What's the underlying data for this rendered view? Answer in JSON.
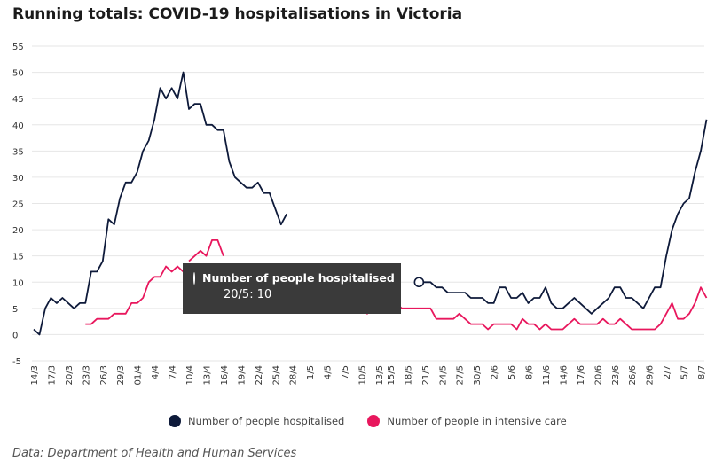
{
  "title": "Running totals: COVID-19 hospitalisations in Victoria",
  "source": "Data: Department of Health and Human Services",
  "colors": {
    "hospitalised": "#0e1a3a",
    "intensive_care": "#e8175d",
    "grid": "#e6e6e6",
    "tooltip_bg": "#3a3a3a"
  },
  "tooltip": {
    "series": "Number of people hospitalised",
    "value_text": "20/5: 10",
    "date": "20/5",
    "value": 10
  },
  "chart_data": {
    "type": "line",
    "title": "Running totals: COVID-19 hospitalisations in Victoria",
    "ylim": [
      -5,
      55
    ],
    "yticks": [
      -5,
      0,
      5,
      10,
      15,
      20,
      25,
      30,
      35,
      40,
      45,
      50,
      55
    ],
    "grid": "horizontal",
    "legend_position": "bottom",
    "x_start": "14/3",
    "x_end": "8/7",
    "xticks": [
      "14/3",
      "17/3",
      "20/3",
      "23/3",
      "26/3",
      "29/3",
      "01/4",
      "4/4",
      "7/4",
      "10/4",
      "13/4",
      "16/4",
      "19/4",
      "22/4",
      "25/4",
      "28/4",
      "1/5",
      "4/5",
      "7/5",
      "10/5",
      "13/5",
      "15/5",
      "18/5",
      "21/5",
      "24/5",
      "27/5",
      "30/5",
      "2/6",
      "5/6",
      "8/6",
      "11/6",
      "14/6",
      "17/6",
      "20/6",
      "23/6",
      "26/6",
      "29/6",
      "2/7",
      "5/7",
      "8/7"
    ],
    "series": [
      {
        "name": "Number of people hospitalised",
        "color": "#0e1a3a",
        "segments": [
          [
            [
              "14/3",
              1
            ],
            [
              "15/3",
              0
            ],
            [
              "16/3",
              5
            ],
            [
              "17/3",
              7
            ],
            [
              "18/3",
              6
            ],
            [
              "19/3",
              7
            ],
            [
              "20/3",
              6
            ],
            [
              "21/3",
              5
            ],
            [
              "22/3",
              6
            ],
            [
              "23/3",
              6
            ],
            [
              "24/3",
              12
            ],
            [
              "25/3",
              12
            ],
            [
              "26/3",
              14
            ],
            [
              "27/3",
              22
            ],
            [
              "28/3",
              21
            ],
            [
              "29/3",
              26
            ],
            [
              "30/3",
              29
            ],
            [
              "31/3",
              29
            ],
            [
              "1/4",
              31
            ],
            [
              "2/4",
              35
            ],
            [
              "3/4",
              37
            ],
            [
              "4/4",
              41
            ],
            [
              "5/4",
              47
            ],
            [
              "6/4",
              45
            ],
            [
              "7/4",
              47
            ],
            [
              "8/4",
              45
            ],
            [
              "9/4",
              50
            ],
            [
              "10/4",
              43
            ],
            [
              "11/4",
              44
            ],
            [
              "12/4",
              44
            ],
            [
              "13/4",
              40
            ],
            [
              "14/4",
              40
            ],
            [
              "15/4",
              39
            ],
            [
              "16/4",
              39
            ],
            [
              "17/4",
              33
            ],
            [
              "18/4",
              30
            ],
            [
              "19/4",
              29
            ],
            [
              "20/4",
              28
            ],
            [
              "21/4",
              28
            ],
            [
              "22/4",
              29
            ],
            [
              "23/4",
              27
            ],
            [
              "24/4",
              27
            ],
            [
              "25/4",
              24
            ],
            [
              "26/4",
              21
            ],
            [
              "27/4",
              23
            ]
          ],
          [
            [
              "20/5",
              10
            ],
            [
              "21/5",
              10
            ],
            [
              "22/5",
              10
            ],
            [
              "23/5",
              9
            ],
            [
              "24/5",
              9
            ],
            [
              "25/5",
              8
            ],
            [
              "26/5",
              8
            ],
            [
              "27/5",
              8
            ],
            [
              "28/5",
              8
            ],
            [
              "29/5",
              7
            ],
            [
              "30/5",
              7
            ],
            [
              "31/5",
              7
            ],
            [
              "1/6",
              6
            ],
            [
              "2/6",
              6
            ],
            [
              "3/6",
              9
            ],
            [
              "4/6",
              9
            ],
            [
              "5/6",
              7
            ],
            [
              "6/6",
              7
            ],
            [
              "7/6",
              8
            ],
            [
              "8/6",
              6
            ],
            [
              "9/6",
              7
            ],
            [
              "10/6",
              7
            ],
            [
              "11/6",
              9
            ],
            [
              "12/6",
              6
            ],
            [
              "13/6",
              5
            ],
            [
              "14/6",
              5
            ],
            [
              "15/6",
              6
            ],
            [
              "16/6",
              7
            ],
            [
              "17/6",
              6
            ],
            [
              "18/6",
              5
            ],
            [
              "19/6",
              4
            ],
            [
              "20/6",
              5
            ],
            [
              "21/6",
              6
            ],
            [
              "22/6",
              7
            ],
            [
              "23/6",
              9
            ],
            [
              "24/6",
              9
            ],
            [
              "25/6",
              7
            ],
            [
              "26/6",
              7
            ],
            [
              "27/6",
              6
            ],
            [
              "28/6",
              5
            ],
            [
              "29/6",
              7
            ],
            [
              "30/6",
              9
            ],
            [
              "1/7",
              9
            ],
            [
              "2/7",
              15
            ],
            [
              "3/7",
              20
            ],
            [
              "4/7",
              23
            ],
            [
              "5/7",
              25
            ],
            [
              "6/7",
              26
            ],
            [
              "7/7",
              31
            ],
            [
              "8/7",
              35
            ],
            [
              "9/7",
              41
            ]
          ]
        ]
      },
      {
        "name": "Number of people in intensive care",
        "color": "#e8175d",
        "segments": [
          [
            [
              "23/3",
              2
            ],
            [
              "24/3",
              2
            ],
            [
              "25/3",
              3
            ],
            [
              "26/3",
              3
            ],
            [
              "27/3",
              3
            ],
            [
              "28/3",
              4
            ],
            [
              "29/3",
              4
            ],
            [
              "30/3",
              4
            ],
            [
              "31/3",
              6
            ],
            [
              "1/4",
              6
            ],
            [
              "2/4",
              7
            ],
            [
              "3/4",
              10
            ],
            [
              "4/4",
              11
            ],
            [
              "5/4",
              11
            ],
            [
              "6/4",
              13
            ],
            [
              "7/4",
              12
            ],
            [
              "8/4",
              13
            ],
            [
              "9/4",
              12
            ]
          ],
          [
            [
              "10/4",
              14
            ],
            [
              "11/4",
              15
            ],
            [
              "12/4",
              16
            ],
            [
              "13/4",
              15
            ],
            [
              "14/4",
              18
            ],
            [
              "15/4",
              18
            ],
            [
              "16/4",
              15
            ]
          ],
          [
            [
              "8/5",
              5
            ],
            [
              "9/5",
              6
            ],
            [
              "10/5",
              5
            ],
            [
              "11/5",
              4
            ],
            [
              "12/5",
              6
            ],
            [
              "13/5",
              7
            ],
            [
              "14/5",
              6
            ],
            [
              "15/5",
              7
            ],
            [
              "16/5",
              6
            ],
            [
              "17/5",
              5
            ],
            [
              "18/5",
              5
            ],
            [
              "19/5",
              5
            ],
            [
              "20/5",
              5
            ],
            [
              "21/5",
              5
            ],
            [
              "22/5",
              5
            ],
            [
              "23/5",
              3
            ],
            [
              "24/5",
              3
            ],
            [
              "25/5",
              3
            ],
            [
              "26/5",
              3
            ],
            [
              "27/5",
              4
            ],
            [
              "28/5",
              3
            ],
            [
              "29/5",
              2
            ],
            [
              "30/5",
              2
            ],
            [
              "31/5",
              2
            ],
            [
              "1/6",
              1
            ],
            [
              "2/6",
              2
            ],
            [
              "3/6",
              2
            ],
            [
              "4/6",
              2
            ],
            [
              "5/6",
              2
            ],
            [
              "6/6",
              1
            ],
            [
              "7/6",
              3
            ],
            [
              "8/6",
              2
            ],
            [
              "9/6",
              2
            ],
            [
              "10/6",
              1
            ],
            [
              "11/6",
              2
            ],
            [
              "12/6",
              1
            ],
            [
              "13/6",
              1
            ],
            [
              "14/6",
              1
            ],
            [
              "15/6",
              2
            ],
            [
              "16/6",
              3
            ],
            [
              "17/6",
              2
            ],
            [
              "18/6",
              2
            ],
            [
              "19/6",
              2
            ],
            [
              "20/6",
              2
            ],
            [
              "21/6",
              3
            ],
            [
              "22/6",
              2
            ],
            [
              "23/6",
              2
            ],
            [
              "24/6",
              3
            ],
            [
              "25/6",
              2
            ],
            [
              "26/6",
              1
            ],
            [
              "27/6",
              1
            ],
            [
              "28/6",
              1
            ],
            [
              "29/6",
              1
            ],
            [
              "30/6",
              1
            ],
            [
              "1/7",
              2
            ],
            [
              "2/7",
              4
            ],
            [
              "3/7",
              6
            ],
            [
              "4/7",
              3
            ],
            [
              "5/7",
              3
            ],
            [
              "6/7",
              4
            ],
            [
              "7/7",
              6
            ],
            [
              "8/7",
              9
            ],
            [
              "9/7",
              7
            ]
          ]
        ]
      }
    ]
  }
}
